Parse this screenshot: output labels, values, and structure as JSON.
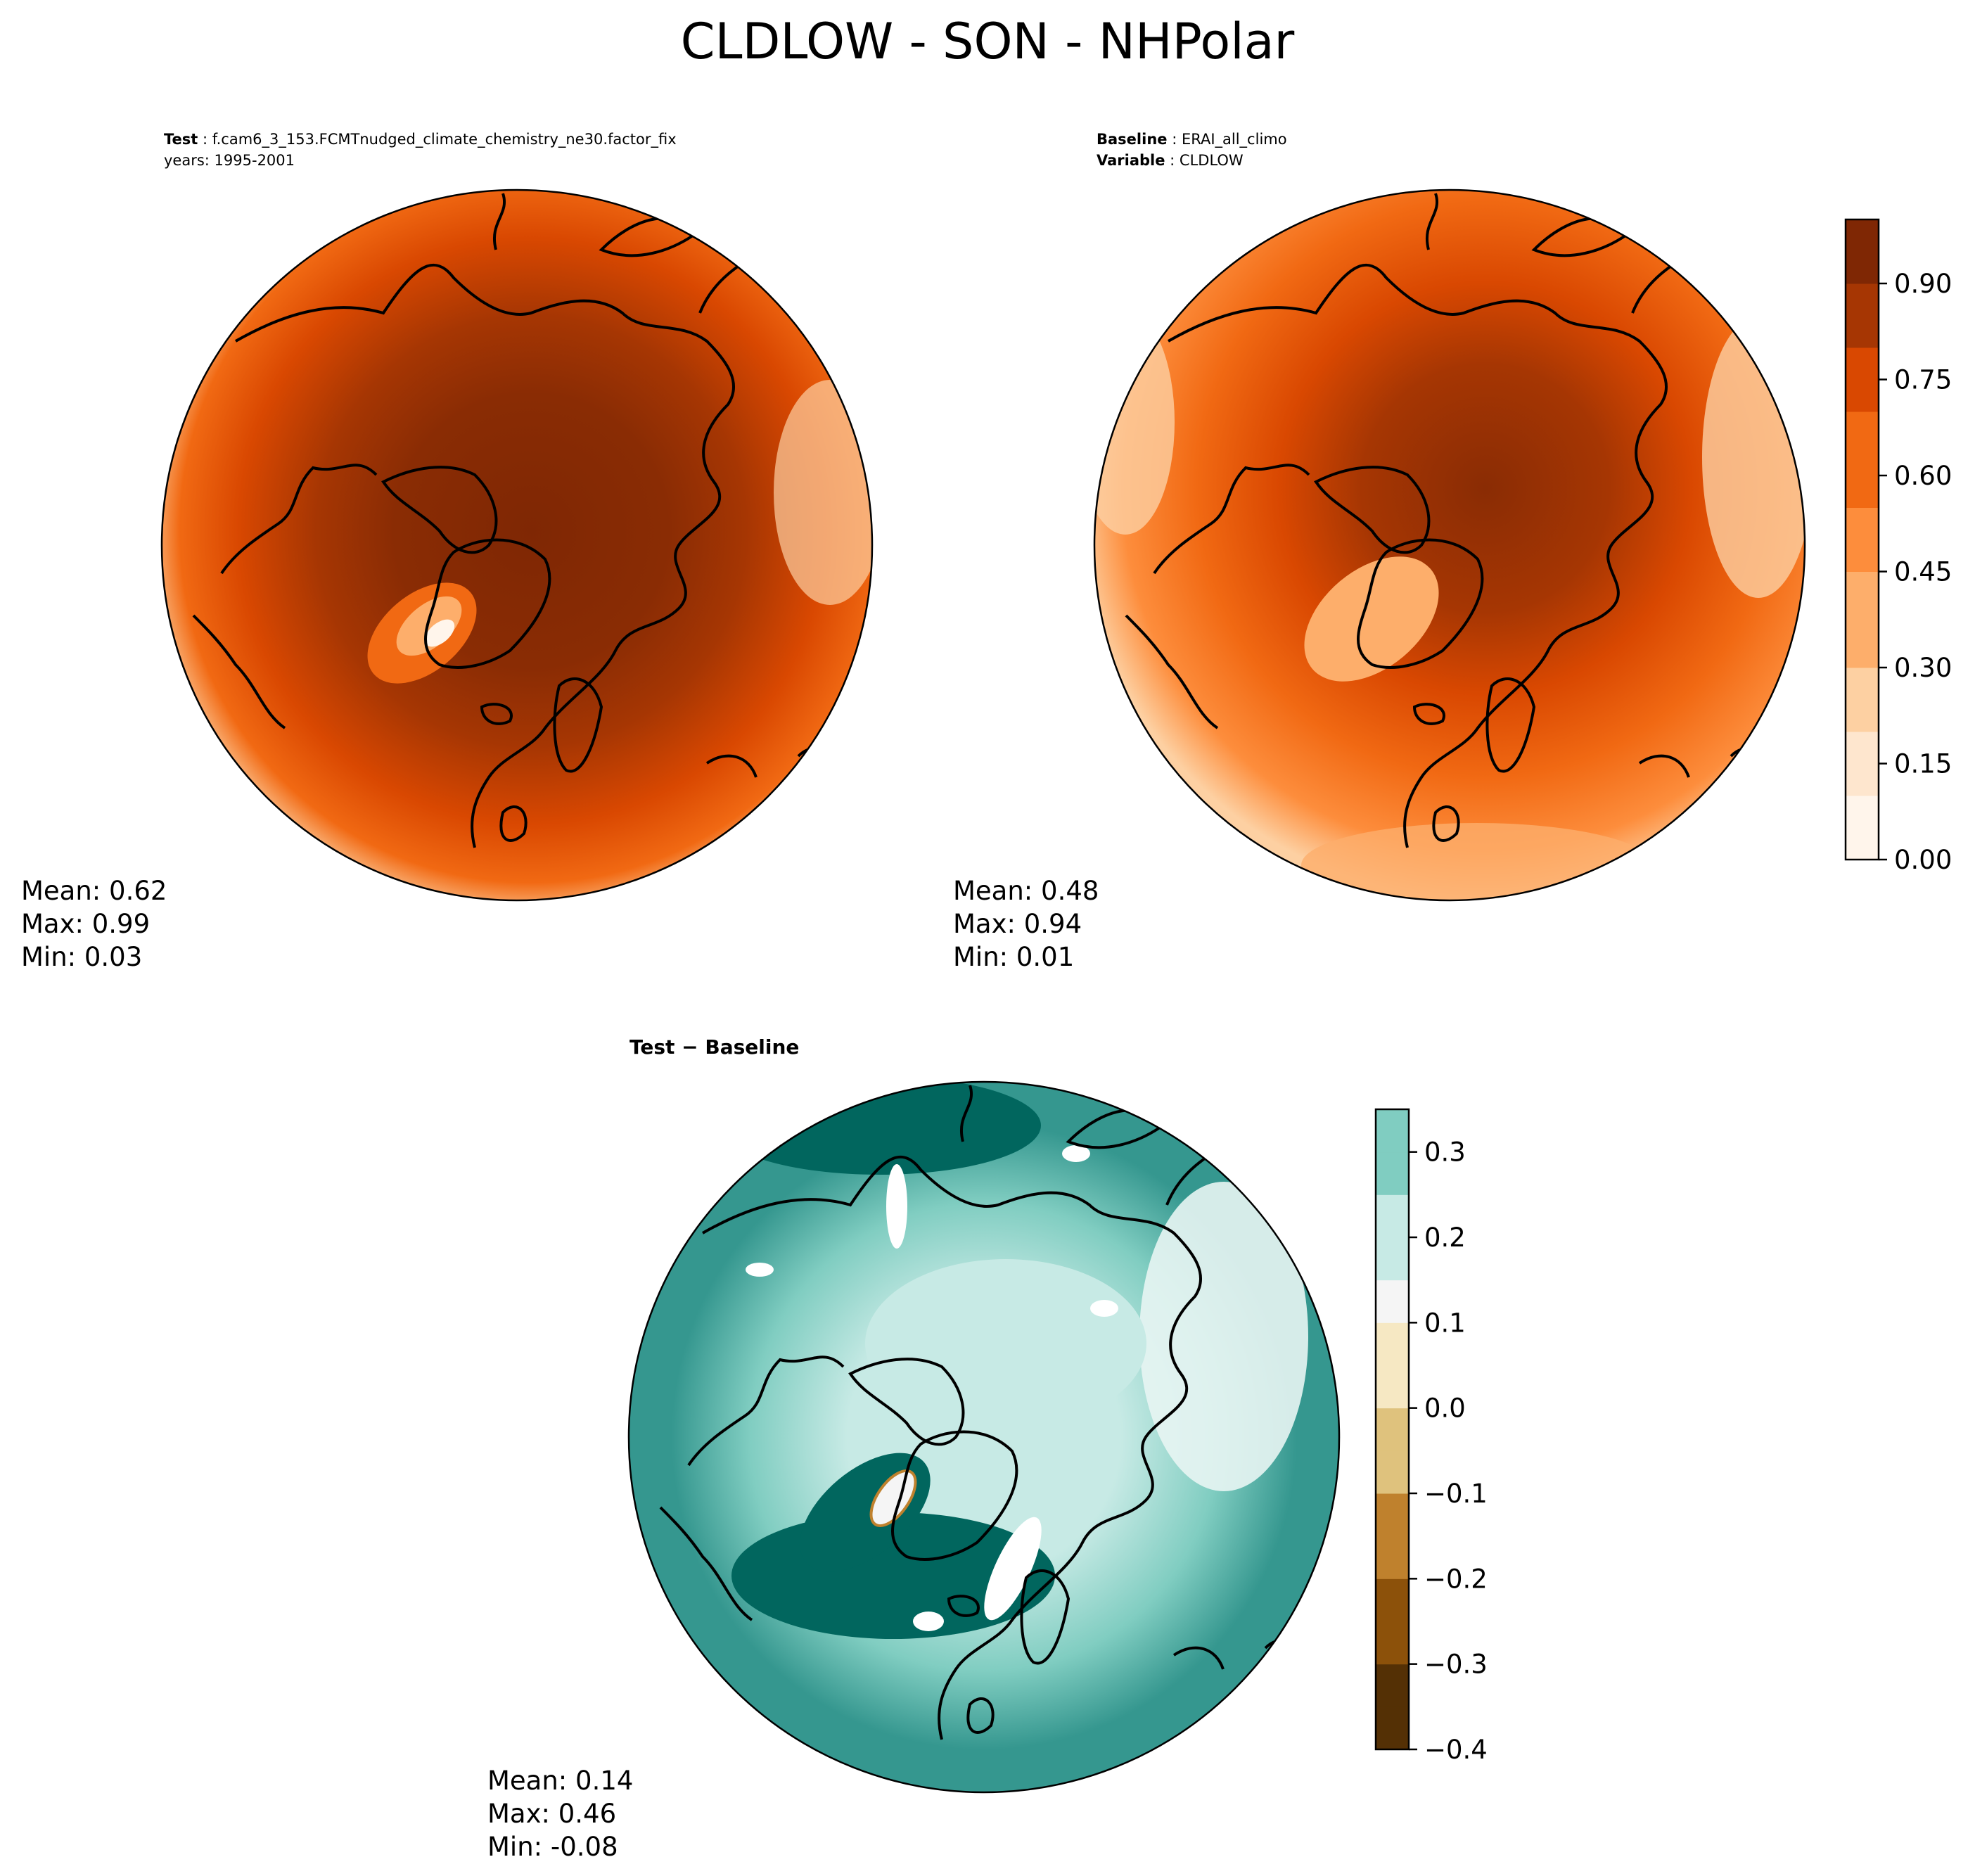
{
  "figure": {
    "title": "CLDLOW - SON - NHPolar"
  },
  "panels": {
    "test": {
      "label": "Test",
      "case": "f.cam6_3_153.FCMTnudged_climate_chemistry_ne30.factor_fix",
      "years": "years: 1995-2001",
      "stats": {
        "mean": "Mean:  0.62",
        "max": "Max:  0.99",
        "min": "Min:  0.03"
      }
    },
    "baseline": {
      "label": "Baseline",
      "case": "ERAI_all_climo",
      "variable_label": "Variable",
      "variable": "CLDLOW",
      "stats": {
        "mean": "Mean:  0.48",
        "max": "Max:  0.94",
        "min": "Min:  0.01"
      }
    },
    "diff": {
      "label": "Test − Baseline",
      "stats": {
        "mean": "Mean:  0.14",
        "max": "Max:  0.46",
        "min": "Min: -0.08"
      }
    }
  },
  "colors": {
    "oranges": [
      "#fff5eb",
      "#fee6ce",
      "#fdd0a2",
      "#fdae6b",
      "#fd8d3c",
      "#f16913",
      "#d94801",
      "#a63603",
      "#7f2704"
    ],
    "diverging": [
      "#543005",
      "#8c510a",
      "#bf812d",
      "#dfc27d",
      "#f6e8c3",
      "#f5f5f5",
      "#c7eae5",
      "#80cdc1",
      "#35978f",
      "#01665e",
      "#003c30"
    ]
  },
  "chart_data": [
    {
      "type": "heatmap",
      "name": "test",
      "projection": "north polar stereographic",
      "variable": "CLDLOW",
      "season": "SON",
      "mean": 0.62,
      "max": 0.99,
      "min": 0.03,
      "colorbar": {
        "range": [
          0.0,
          1.0
        ],
        "ticks": [
          0.0,
          0.15,
          0.3,
          0.45,
          0.6,
          0.75,
          0.9
        ]
      }
    },
    {
      "type": "heatmap",
      "name": "baseline",
      "projection": "north polar stereographic",
      "variable": "CLDLOW",
      "season": "SON",
      "mean": 0.48,
      "max": 0.94,
      "min": 0.01,
      "colorbar": {
        "range": [
          0.0,
          1.0
        ],
        "ticks": [
          0.0,
          0.15,
          0.3,
          0.45,
          0.6,
          0.75,
          0.9
        ],
        "tick_labels": [
          "0.00",
          "0.15",
          "0.30",
          "0.45",
          "0.60",
          "0.75",
          "0.90"
        ]
      }
    },
    {
      "type": "heatmap",
      "name": "difference",
      "projection": "north polar stereographic",
      "mean": 0.14,
      "max": 0.46,
      "min": -0.08,
      "colorbar": {
        "range": [
          -0.4,
          0.35
        ],
        "ticks": [
          -0.4,
          -0.3,
          -0.2,
          -0.1,
          0.0,
          0.1,
          0.2,
          0.3
        ],
        "tick_labels": [
          "−0.4",
          "−0.3",
          "−0.2",
          "−0.1",
          "0.0",
          "0.1",
          "0.2",
          "0.3"
        ]
      }
    }
  ]
}
